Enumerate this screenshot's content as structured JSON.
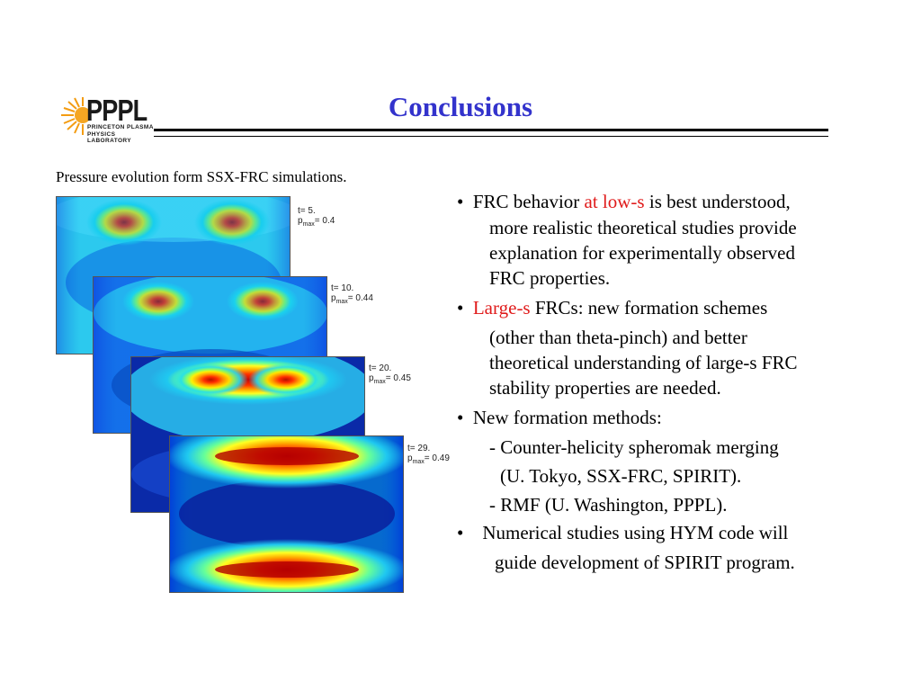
{
  "slide": {
    "title": "Conclusions",
    "logo": {
      "name": "PPPL",
      "line1": "PRINCETON PLASMA",
      "line2": "PHYSICS LABORATORY"
    },
    "caption": "Pressure evolution form SSX-FRC simulations.",
    "panels": [
      {
        "t": "t= 5.",
        "p": "p",
        "sub": "max",
        "val": "= 0.4"
      },
      {
        "t": "t= 10.",
        "p": "p",
        "sub": "max",
        "val": "= 0.44"
      },
      {
        "t": "t= 20.",
        "p": "p",
        "sub": "max",
        "val": "= 0.45"
      },
      {
        "t": "t= 29.",
        "p": "p",
        "sub": "max",
        "val": "= 0.49"
      }
    ],
    "bullets": {
      "b1_pre": "FRC behavior ",
      "b1_red": "at low-s",
      "b1_post": " is best understood,",
      "b1_l2": "more realistic theoretical studies provide",
      "b1_l3": "explanation for experimentally observed",
      "b1_l4": "FRC properties.",
      "b2_red": "Large-s",
      "b2_post": " FRCs: new formation schemes",
      "b2_l2": "(other than theta-pinch) and better",
      "b2_l3": "theoretical understanding of large-s FRC",
      "b2_l4": "stability properties are needed.",
      "b3": "New formation methods:",
      "b3_l2": "- Counter-helicity spheromak merging",
      "b3_l3": "(U. Tokyo, SSX-FRC, SPIRIT).",
      "b3_l4": "- RMF (U. Washington, PPPL).",
      "b4": "Numerical studies using HYM code will",
      "b4_l2": "guide development of SPIRIT program.",
      "marker": "•"
    }
  }
}
